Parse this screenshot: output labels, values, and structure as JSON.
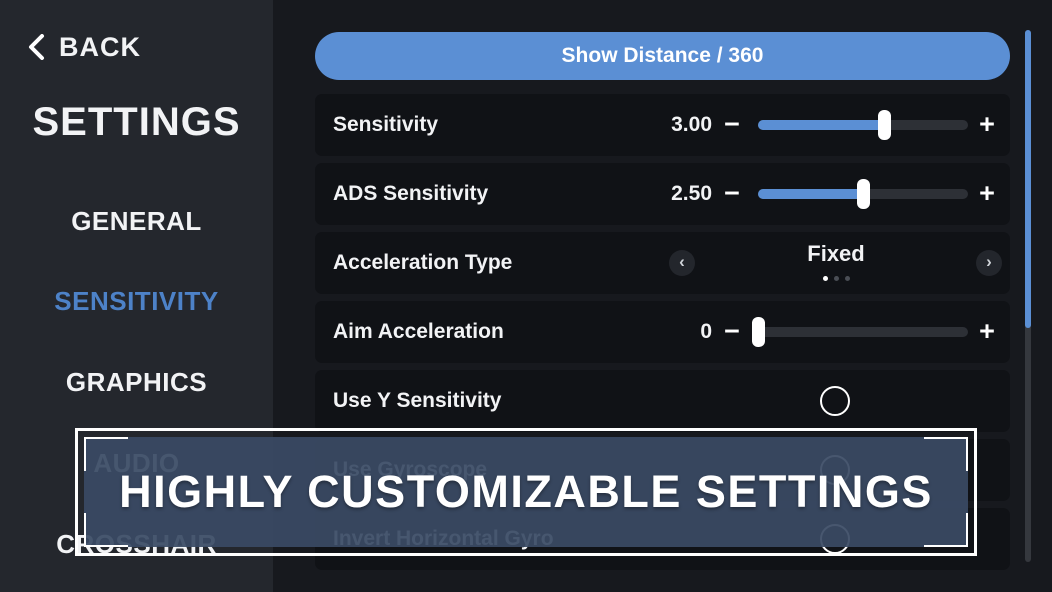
{
  "sidebar": {
    "back_label": "BACK",
    "title": "SETTINGS",
    "items": [
      {
        "label": "GENERAL",
        "active": false
      },
      {
        "label": "SENSITIVITY",
        "active": true
      },
      {
        "label": "GRAPHICS",
        "active": false
      },
      {
        "label": "AUDIO",
        "active": false
      },
      {
        "label": "CROSSHAIR",
        "active": false
      }
    ]
  },
  "main": {
    "show_distance_button": "Show Distance / 360",
    "rows": [
      {
        "type": "slider",
        "label": "Sensitivity",
        "value": "3.00",
        "percent": 60
      },
      {
        "type": "slider",
        "label": "ADS Sensitivity",
        "value": "2.50",
        "percent": 50
      },
      {
        "type": "carousel",
        "label": "Acceleration Type",
        "value": "Fixed",
        "dots": 3,
        "active_dot": 0
      },
      {
        "type": "slider",
        "label": "Aim Acceleration",
        "value": "0",
        "percent": 0
      },
      {
        "type": "toggle",
        "label": "Use Y Sensitivity",
        "checked": false
      },
      {
        "type": "toggle",
        "label": "Use Gyroscope",
        "checked": false
      },
      {
        "type": "toggle",
        "label": "Invert Horizontal Gyro",
        "checked": false
      }
    ]
  },
  "banner": {
    "text": "HIGHLY CUSTOMIZABLE SETTINGS"
  },
  "icons": {
    "minus": "−",
    "plus": "+",
    "chevron_left": "‹",
    "chevron_right": "›"
  },
  "colors": {
    "accent_blue": "#5b8fd4",
    "active_item_blue": "#4d82c8",
    "sidebar_bg": "#24272d",
    "main_bg": "#17191e",
    "row_bg": "#101216",
    "track_gray": "#2d3036",
    "banner_fill": "#3a4a64",
    "banner_border": "#ffffff"
  }
}
